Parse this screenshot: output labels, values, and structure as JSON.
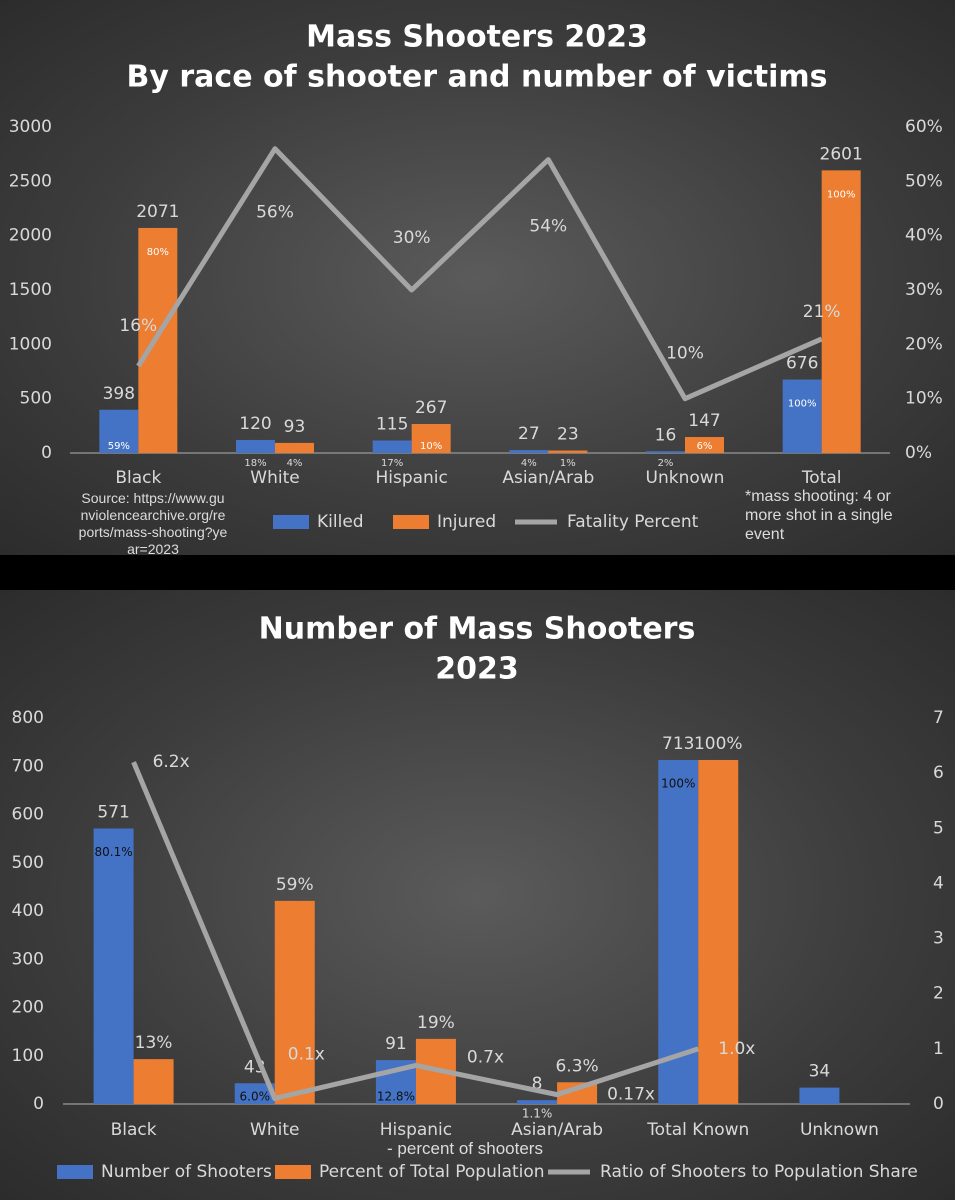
{
  "chart_data": [
    {
      "type": "bar",
      "title": "Mass Shooters 2023",
      "subtitle": "By race of shooter and number of victims",
      "categories": [
        "Black",
        "White",
        "Hispanic",
        "Asian/Arab",
        "Unknown",
        "Total"
      ],
      "series": [
        {
          "name": "Killed",
          "color": "#4472c4",
          "values": [
            398,
            120,
            115,
            27,
            16,
            676
          ],
          "share_labels": [
            "59%",
            "18%",
            "17%",
            "4%",
            "2%",
            "100%"
          ]
        },
        {
          "name": "Injured",
          "color": "#ed7d31",
          "values": [
            2071,
            93,
            267,
            23,
            147,
            2601
          ],
          "share_labels": [
            "80%",
            "4%",
            "10%",
            "1%",
            "6%",
            "100%"
          ]
        },
        {
          "name": "Fatality Percent",
          "color": "#a5a5a5",
          "type": "line",
          "axis": "y2",
          "values": [
            16,
            56,
            30,
            54,
            10,
            21
          ],
          "value_labels": [
            "16%",
            "56%",
            "30%",
            "54%",
            "10%",
            "21%"
          ]
        }
      ],
      "ylim": [
        0,
        3000
      ],
      "yticks": [
        0,
        500,
        1000,
        1500,
        2000,
        2500,
        3000
      ],
      "y2lim": [
        0,
        60
      ],
      "y2ticks": [
        {
          "value": 0,
          "label": "0%"
        },
        {
          "value": 10,
          "label": "10%"
        },
        {
          "value": 20,
          "label": "20%"
        },
        {
          "value": 30,
          "label": "30%"
        },
        {
          "value": 40,
          "label": "40%"
        },
        {
          "value": 50,
          "label": "50%"
        },
        {
          "value": 60,
          "label": "60%"
        }
      ],
      "grid": false,
      "legend": "bottom",
      "source": "Source: https://www.gunviolencearchive.org/reports/mass-shooting?year=2023",
      "note": "*mass shooting: 4 or more shot in a single event"
    },
    {
      "type": "bar",
      "title": "Number of Mass Shooters",
      "subtitle": "2023",
      "categories": [
        "Black",
        "White",
        "Hispanic",
        "Asian/Arab",
        "Total Known",
        "Unknown"
      ],
      "series": [
        {
          "name": "Number of Shooters",
          "color": "#4472c4",
          "values": [
            571,
            43,
            91,
            8,
            713,
            34
          ],
          "share_labels": [
            "80.1%",
            "6.0%",
            "12.8%",
            "1.1%",
            "100%",
            null
          ]
        },
        {
          "name": "Percent of Total Population",
          "color": "#ed7d31",
          "values": [
            93,
            421,
            135,
            45,
            713,
            null
          ],
          "value_labels": [
            "13%",
            "59%",
            "19%",
            "6.3%",
            "100%",
            null
          ]
        },
        {
          "name": "Ratio of Shooters to Population Share",
          "color": "#a5a5a5",
          "type": "line",
          "axis": "y2",
          "values": [
            6.2,
            0.1,
            0.7,
            0.17,
            1.0,
            null
          ],
          "value_labels": [
            "6.2x",
            "0.1x",
            "0.7x",
            "0.17x",
            "1.0x",
            null
          ]
        }
      ],
      "ylim": [
        0,
        800
      ],
      "yticks": [
        0,
        100,
        200,
        300,
        400,
        500,
        600,
        700,
        800
      ],
      "y2lim": [
        0,
        7
      ],
      "y2ticks": [
        0,
        1,
        2,
        3,
        4,
        5,
        6,
        7
      ],
      "grid": false,
      "legend": "bottom",
      "annotation": "- percent of shooters"
    }
  ]
}
